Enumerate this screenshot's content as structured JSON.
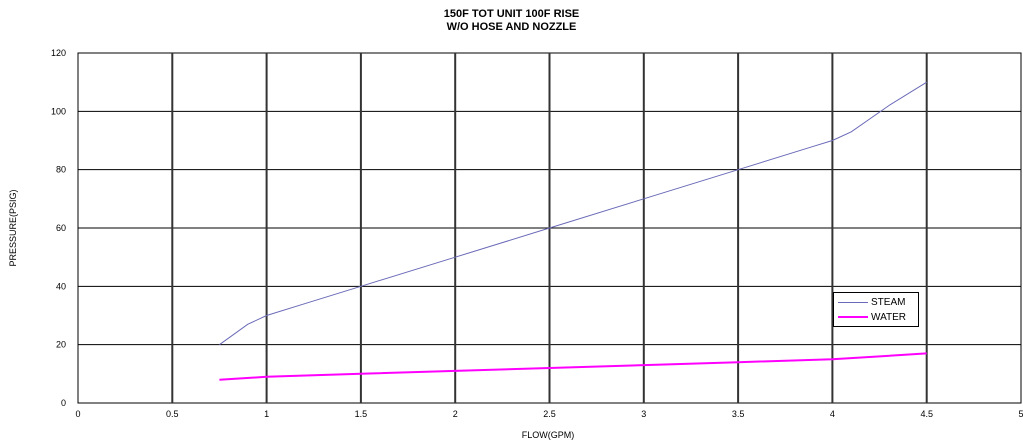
{
  "chart_data": {
    "type": "line",
    "title_line1": "150F  TOT UNIT 100F RISE",
    "title_line2": "W/O HOSE AND NOZZLE",
    "xlabel": "FLOW(GPM)",
    "ylabel": "PRESSURE(PSIG)",
    "xlim": [
      0,
      5
    ],
    "ylim": [
      0,
      120
    ],
    "xticks": [
      "0",
      "0.5",
      "1",
      "1.5",
      "2",
      "2.5",
      "3",
      "3.5",
      "4",
      "4.5",
      "5"
    ],
    "yticks": [
      "0",
      "20",
      "40",
      "60",
      "80",
      "100",
      "120"
    ],
    "grid": true,
    "legend_position": "right",
    "series": [
      {
        "name": "STEAM",
        "color": "#6a6ab8",
        "x": [
          0.75,
          0.9,
          1.0,
          1.2,
          1.5,
          2.0,
          2.5,
          3.0,
          3.5,
          3.9,
          4.0,
          4.1,
          4.3,
          4.5
        ],
        "y": [
          20,
          27,
          30,
          34,
          40,
          50,
          60,
          70,
          80,
          88,
          90,
          93,
          102,
          110
        ]
      },
      {
        "name": "WATER",
        "color": "#ff00ff",
        "x": [
          0.75,
          1.0,
          1.5,
          2.0,
          2.5,
          3.0,
          3.5,
          4.0,
          4.5
        ],
        "y": [
          8,
          9,
          10,
          11,
          12,
          13,
          14,
          15,
          17
        ]
      }
    ]
  }
}
